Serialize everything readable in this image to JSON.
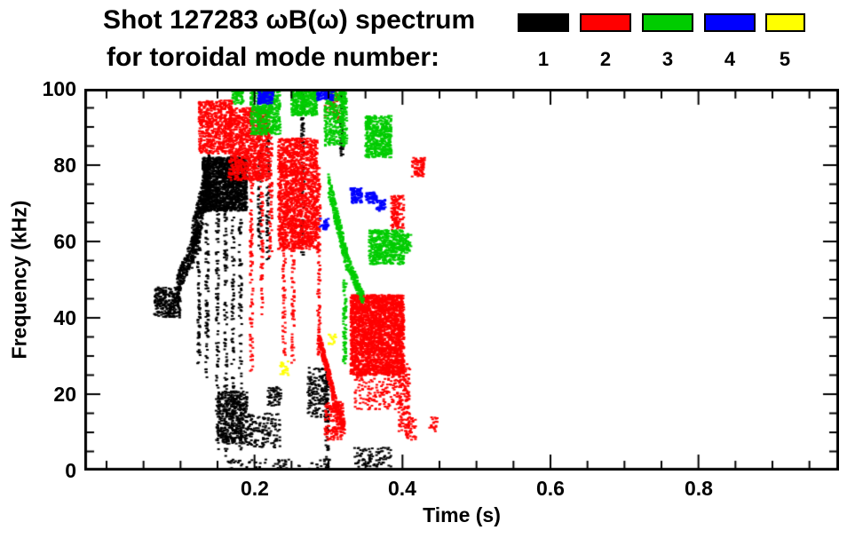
{
  "chart_data": {
    "type": "scatter",
    "title": "Shot 127283 ωB(ω) spectrum",
    "subtitle": "for toroidal mode number:",
    "xlabel": "Time (s)",
    "ylabel": "Frequency (kHz)",
    "xlim": [
      -0.03,
      0.99
    ],
    "ylim": [
      0,
      100
    ],
    "x_tick_labels": [
      "0.2",
      "0.4",
      "0.6",
      "0.8"
    ],
    "x_tick_values": [
      0.2,
      0.4,
      0.6,
      0.8
    ],
    "x_minor_step": 0.05,
    "y_tick_labels": [
      "0",
      "20",
      "40",
      "60",
      "80",
      "100"
    ],
    "y_tick_values": [
      0,
      20,
      40,
      60,
      80,
      100
    ],
    "y_minor_step": 5,
    "grid": false,
    "legend_position": "top-right",
    "legend": [
      {
        "label": "1",
        "color": "#000000"
      },
      {
        "label": "2",
        "color": "#ff0000"
      },
      {
        "label": "3",
        "color": "#00cc00"
      },
      {
        "label": "4",
        "color": "#0000ff"
      },
      {
        "label": "5",
        "color": "#ffff00"
      }
    ],
    "series": [
      {
        "name": "toroidal mode n=1",
        "color": "#000000",
        "blobs": [
          {
            "type": "cloud",
            "t": [
              0.065,
              0.1
            ],
            "f": [
              40,
              48
            ],
            "n": 260
          },
          {
            "type": "trace",
            "t": [
              0.095,
              0.125
            ],
            "f": [
              48,
              62
            ],
            "jitter": 3,
            "n": 260
          },
          {
            "type": "trace",
            "t": [
              0.115,
              0.14
            ],
            "f": [
              58,
              78
            ],
            "jitter": 6,
            "n": 420
          },
          {
            "type": "cloud",
            "t": [
              0.13,
              0.19
            ],
            "f": [
              68,
              82
            ],
            "n": 1500
          },
          {
            "type": "vline",
            "t": [
              0.125,
              0.125
            ],
            "f": [
              28,
              62
            ],
            "n": 70
          },
          {
            "type": "vline",
            "t": [
              0.136,
              0.136
            ],
            "f": [
              24,
              66
            ],
            "n": 80
          },
          {
            "type": "vline",
            "t": [
              0.15,
              0.15
            ],
            "f": [
              5,
              68
            ],
            "n": 100
          },
          {
            "type": "vline",
            "t": [
              0.161,
              0.161
            ],
            "f": [
              3,
              68
            ],
            "n": 100
          },
          {
            "type": "vline",
            "t": [
              0.171,
              0.171
            ],
            "f": [
              10,
              67
            ],
            "n": 80
          },
          {
            "type": "vline",
            "t": [
              0.181,
              0.181
            ],
            "f": [
              5,
              66
            ],
            "n": 80
          },
          {
            "type": "cloud",
            "t": [
              0.15,
              0.19
            ],
            "f": [
              7,
              21
            ],
            "n": 420
          },
          {
            "type": "cloud",
            "t": [
              0.19,
              0.235
            ],
            "f": [
              6,
              15
            ],
            "n": 140
          },
          {
            "type": "cloud",
            "t": [
              0.16,
              0.31
            ],
            "f": [
              0,
              3
            ],
            "n": 70
          },
          {
            "type": "cloud",
            "t": [
              0.218,
              0.236
            ],
            "f": [
              17,
              22
            ],
            "n": 60
          },
          {
            "type": "vline",
            "t": [
              0.207,
              0.207
            ],
            "f": [
              58,
              95
            ],
            "n": 80
          },
          {
            "type": "vline",
            "t": [
              0.218,
              0.218
            ],
            "f": [
              55,
              90
            ],
            "n": 60
          },
          {
            "type": "vline",
            "t": [
              0.265,
              0.265
            ],
            "f": [
              55,
              100
            ],
            "n": 110
          },
          {
            "type": "cloud",
            "t": [
              0.272,
              0.3
            ],
            "f": [
              14,
              27
            ],
            "n": 170
          },
          {
            "type": "vline",
            "t": [
              0.298,
              0.298
            ],
            "f": [
              0,
              28
            ],
            "n": 70
          },
          {
            "type": "vline",
            "t": [
              0.318,
              0.318
            ],
            "f": [
              82,
              100
            ],
            "n": 60
          },
          {
            "type": "cloud",
            "t": [
              0.335,
              0.385
            ],
            "f": [
              1,
              6
            ],
            "n": 90
          }
        ]
      },
      {
        "name": "toroidal mode n=2",
        "color": "#ff0000",
        "blobs": [
          {
            "type": "cloud",
            "t": [
              0.125,
              0.17
            ],
            "f": [
              83,
              97
            ],
            "n": 600
          },
          {
            "type": "cloud",
            "t": [
              0.165,
              0.22
            ],
            "f": [
              76,
              95
            ],
            "n": 1000
          },
          {
            "type": "vline",
            "t": [
              0.196,
              0.196
            ],
            "f": [
              25,
              78
            ],
            "n": 100
          },
          {
            "type": "vline",
            "t": [
              0.21,
              0.21
            ],
            "f": [
              40,
              85
            ],
            "n": 80
          },
          {
            "type": "vline",
            "t": [
              0.222,
              0.222
            ],
            "f": [
              55,
              88
            ],
            "n": 70
          },
          {
            "type": "cloud",
            "t": [
              0.232,
              0.285
            ],
            "f": [
              58,
              87
            ],
            "n": 1700
          },
          {
            "type": "vline",
            "t": [
              0.24,
              0.24
            ],
            "f": [
              30,
              60
            ],
            "n": 60
          },
          {
            "type": "vline",
            "t": [
              0.252,
              0.252
            ],
            "f": [
              28,
              60
            ],
            "n": 60
          },
          {
            "type": "vline",
            "t": [
              0.287,
              0.287
            ],
            "f": [
              30,
              80
            ],
            "n": 120
          },
          {
            "type": "trace",
            "t": [
              0.287,
              0.307
            ],
            "f": [
              35,
              20
            ],
            "jitter": 2,
            "n": 200
          },
          {
            "type": "trace",
            "t": [
              0.305,
              0.322
            ],
            "f": [
              20,
              11
            ],
            "jitter": 2,
            "n": 130
          },
          {
            "type": "cloud",
            "t": [
              0.295,
              0.32
            ],
            "f": [
              8,
              18
            ],
            "n": 160
          },
          {
            "type": "cloud",
            "t": [
              0.33,
              0.402
            ],
            "f": [
              25,
              46
            ],
            "n": 2600
          },
          {
            "type": "cloud",
            "t": [
              0.335,
              0.4
            ],
            "f": [
              16,
              25
            ],
            "n": 160
          },
          {
            "type": "cloud",
            "t": [
              0.395,
              0.41
            ],
            "f": [
              10,
              28
            ],
            "n": 130
          },
          {
            "type": "cloud",
            "t": [
              0.385,
              0.402
            ],
            "f": [
              63,
              72
            ],
            "n": 130
          },
          {
            "type": "cloud",
            "t": [
              0.413,
              0.43
            ],
            "f": [
              77,
              82
            ],
            "n": 80
          },
          {
            "type": "cloud",
            "t": [
              0.295,
              0.315
            ],
            "f": [
              92,
              100
            ],
            "n": 70
          },
          {
            "type": "cloud",
            "t": [
              0.405,
              0.418
            ],
            "f": [
              8,
              14
            ],
            "n": 40
          },
          {
            "type": "cloud",
            "t": [
              0.435,
              0.447
            ],
            "f": [
              10,
              14
            ],
            "n": 20
          }
        ]
      },
      {
        "name": "toroidal mode n=3",
        "color": "#00cc00",
        "blobs": [
          {
            "type": "cloud",
            "t": [
              0.17,
              0.185
            ],
            "f": [
              96,
              100
            ],
            "n": 60
          },
          {
            "type": "cloud",
            "t": [
              0.195,
              0.235
            ],
            "f": [
              88,
              100
            ],
            "n": 520
          },
          {
            "type": "cloud",
            "t": [
              0.25,
              0.285
            ],
            "f": [
              93,
              100
            ],
            "n": 360
          },
          {
            "type": "cloud",
            "t": [
              0.295,
              0.325
            ],
            "f": [
              85,
              100
            ],
            "n": 330
          },
          {
            "type": "vline",
            "t": [
              0.32,
              0.32
            ],
            "f": [
              85,
              100
            ],
            "n": 70
          },
          {
            "type": "cloud",
            "t": [
              0.35,
              0.385
            ],
            "f": [
              82,
              93
            ],
            "n": 480
          },
          {
            "type": "trace",
            "t": [
              0.3,
              0.325
            ],
            "f": [
              75,
              55
            ],
            "jitter": 3,
            "n": 260
          },
          {
            "type": "trace",
            "t": [
              0.325,
              0.347
            ],
            "f": [
              55,
              45
            ],
            "jitter": 2,
            "n": 150
          },
          {
            "type": "cloud",
            "t": [
              0.355,
              0.402
            ],
            "f": [
              54,
              63
            ],
            "n": 520
          },
          {
            "type": "vline",
            "t": [
              0.322,
              0.322
            ],
            "f": [
              28,
              50
            ],
            "n": 90
          },
          {
            "type": "cloud",
            "t": [
              0.4,
              0.412
            ],
            "f": [
              57,
              62
            ],
            "n": 50
          }
        ]
      },
      {
        "name": "toroidal mode n=4",
        "color": "#0000ff",
        "blobs": [
          {
            "type": "cloud",
            "t": [
              0.205,
              0.225
            ],
            "f": [
              96,
              100
            ],
            "n": 130
          },
          {
            "type": "cloud",
            "t": [
              0.285,
              0.307
            ],
            "f": [
              97,
              100
            ],
            "n": 110
          },
          {
            "type": "cloud",
            "t": [
              0.33,
              0.345
            ],
            "f": [
              70,
              74
            ],
            "n": 90
          },
          {
            "type": "cloud",
            "t": [
              0.35,
              0.365
            ],
            "f": [
              70,
              73
            ],
            "n": 60
          },
          {
            "type": "cloud",
            "t": [
              0.365,
              0.377
            ],
            "f": [
              68,
              71
            ],
            "n": 40
          },
          {
            "type": "cloud",
            "t": [
              0.288,
              0.3
            ],
            "f": [
              63,
              66
            ],
            "n": 30
          }
        ]
      },
      {
        "name": "toroidal mode n=5",
        "color": "#ffff00",
        "blobs": [
          {
            "type": "cloud",
            "t": [
              0.235,
              0.246
            ],
            "f": [
              25,
              29
            ],
            "n": 25
          },
          {
            "type": "cloud",
            "t": [
              0.3,
              0.312
            ],
            "f": [
              33,
              36
            ],
            "n": 15
          }
        ]
      }
    ]
  }
}
